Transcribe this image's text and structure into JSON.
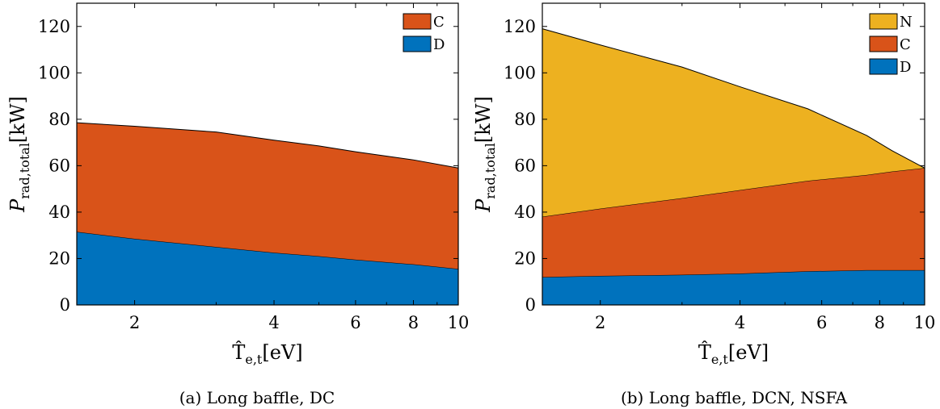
{
  "colors": {
    "D": "#0072BD",
    "C": "#D95319",
    "N": "#EDB120"
  },
  "chart_data": [
    {
      "type": "area",
      "stacked": true,
      "xscale": "log",
      "xlim": [
        1.5,
        10
      ],
      "ylim": [
        0,
        130
      ],
      "xticks": [
        2,
        4,
        6,
        8,
        10
      ],
      "xtick_labels": [
        "2",
        "4",
        "6",
        "8",
        "10"
      ],
      "yticks": [
        0,
        20,
        40,
        60,
        80,
        100,
        120
      ],
      "ytick_labels": [
        "0",
        "20",
        "40",
        "60",
        "80",
        "100",
        "120"
      ],
      "xlabel": {
        "main": "T̂",
        "sub": "e,t",
        "unit": "[eV]"
      },
      "ylabel": {
        "main": "P",
        "sub": "rad,total",
        "unit": "[kW]"
      },
      "legend_position": "top-right",
      "legend_order": [
        "C",
        "D"
      ],
      "caption": "(a) Long baffle, DC",
      "x": [
        1.5,
        2,
        3,
        4,
        5,
        6,
        8,
        10
      ],
      "series": [
        {
          "name": "D",
          "color_key": "D",
          "values": [
            31.5,
            28.5,
            25,
            22.5,
            21,
            19.5,
            17.5,
            15.5
          ]
        },
        {
          "name": "C",
          "color_key": "C",
          "values": [
            47,
            48.5,
            49.5,
            48.5,
            47.5,
            46.5,
            45,
            43.5
          ]
        }
      ]
    },
    {
      "type": "area",
      "stacked": true,
      "xscale": "log",
      "xlim": [
        1.5,
        10
      ],
      "ylim": [
        0,
        130
      ],
      "xticks": [
        2,
        4,
        6,
        8,
        10
      ],
      "xtick_labels": [
        "2",
        "4",
        "6",
        "8",
        "10"
      ],
      "yticks": [
        0,
        20,
        40,
        60,
        80,
        100,
        120
      ],
      "ytick_labels": [
        "0",
        "20",
        "40",
        "60",
        "80",
        "100",
        "120"
      ],
      "xlabel": {
        "main": "T̂",
        "sub": "e,t",
        "unit": "[eV]"
      },
      "ylabel": {
        "main": "P",
        "sub": "rad,total",
        "unit": "[kW]"
      },
      "legend_position": "top-right",
      "legend_order": [
        "N",
        "C",
        "D"
      ],
      "caption": "(b) Long baffle, DCN, NSFA",
      "x": [
        1.5,
        2,
        3,
        4,
        5.6,
        7.5,
        8.5,
        10
      ],
      "series": [
        {
          "name": "D",
          "color_key": "D",
          "values": [
            12,
            12.5,
            13,
            13.5,
            14.5,
            15,
            15,
            15
          ]
        },
        {
          "name": "C",
          "color_key": "C",
          "values": [
            26,
            29,
            33,
            36,
            39,
            41,
            42.5,
            44
          ]
        },
        {
          "name": "N",
          "color_key": "N",
          "values": [
            81,
            70.5,
            56.5,
            44.5,
            31,
            17,
            9,
            0
          ]
        }
      ]
    }
  ]
}
